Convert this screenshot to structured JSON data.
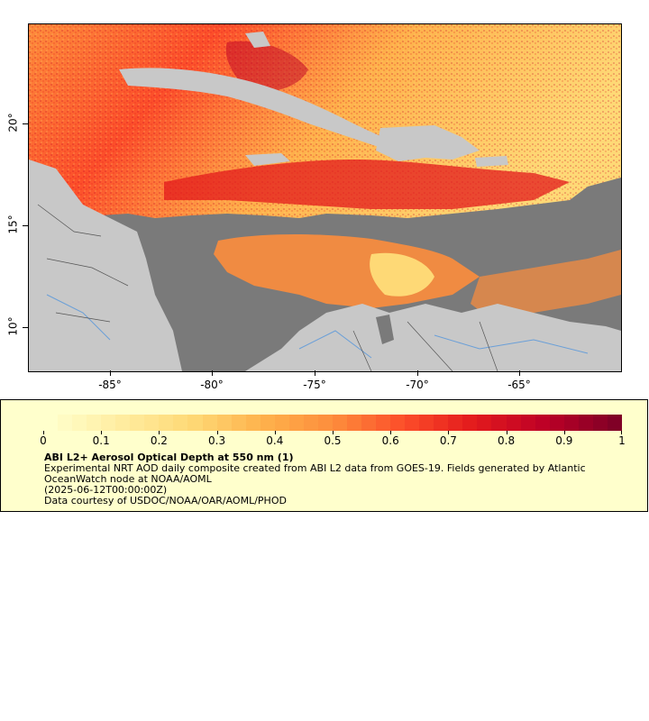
{
  "map": {
    "y_labels": [
      "20°",
      "15°",
      "10°"
    ],
    "x_labels": [
      "-85°",
      "-80°",
      "-75°",
      "-70°",
      "-65°"
    ],
    "lat_values": [
      20,
      15,
      10
    ],
    "lon_values": [
      -85,
      -80,
      -75,
      -70,
      -65
    ],
    "land_color": "#c8c8c8",
    "nodata_color": "#7a7a7a",
    "river_color": "#6a9fd8",
    "border_color": "#555555"
  },
  "legend": {
    "ticks": [
      "0",
      "0.1",
      "0.2",
      "0.3",
      "0.4",
      "0.5",
      "0.6",
      "0.7",
      "0.8",
      "0.9",
      "1"
    ],
    "tick_values": [
      0,
      0.1,
      0.2,
      0.3,
      0.4,
      0.5,
      0.6,
      0.7,
      0.8,
      0.9,
      1
    ],
    "colors": [
      "#ffffcc",
      "#ffeda0",
      "#fed976",
      "#feb24c",
      "#fd8d3c",
      "#fc4e2a",
      "#e31a1c",
      "#bd0026",
      "#800026"
    ],
    "title": "ABI L2+ Aerosol Optical Depth at 550 nm (1)",
    "line1": "Experimental NRT AOD daily composite created from ABI L2 data from GOES-19. Fields generated by Atlantic OceanWatch node at NOAA/AOML",
    "line2": "(2025-06-12T00:00:00Z)",
    "line3": "Data courtesy of USDOC/NOAA/OAR/AOML/PHOD"
  }
}
